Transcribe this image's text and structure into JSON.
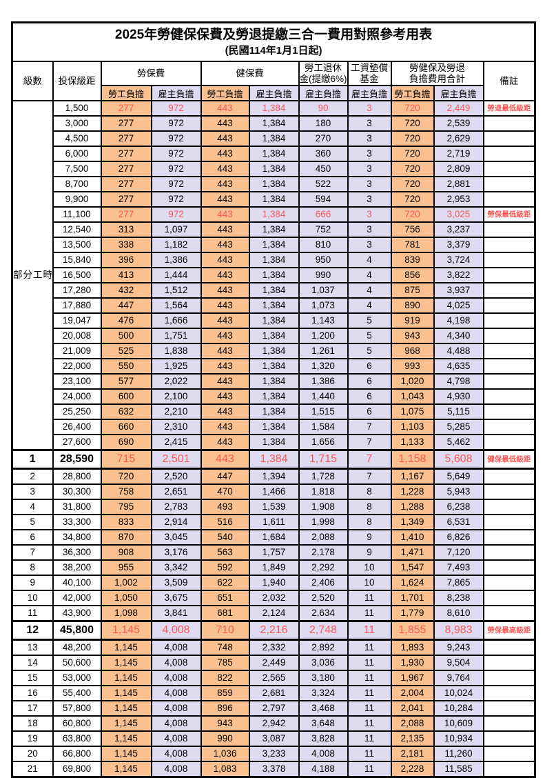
{
  "title": "2025年勞健保保費及勞退提繳三合一費用對照參考用表",
  "subtitle": "(民國114年1月1日起)",
  "colors": {
    "highlight_orange": "#FAC090",
    "highlight_lavender": "#DEDAEF",
    "alert_red": "#FB5A5A"
  },
  "header": {
    "level": "級數",
    "bracket": "投保級距",
    "labor": "勞保費",
    "health": "健保費",
    "pension_line1": "勞工退休",
    "pension_line2": "金(提繳6%)",
    "wage_line1": "工資墊償",
    "wage_line2": "基金",
    "total_line1": "勞健保及勞退",
    "total_line2": "負擔費用合計",
    "note": "備註",
    "employee": "勞工負擔",
    "employer": "雇主負擔"
  },
  "part_time_label": "部分工時",
  "part_time_row_span": 23,
  "rows": [
    {
      "level": "",
      "bracket": "1,500",
      "values": [
        "277",
        "972",
        "443",
        "1,384",
        "90",
        "3",
        "720",
        "2,449"
      ],
      "note": "勞退最低級距",
      "red": true,
      "bold": false
    },
    {
      "level": "",
      "bracket": "3,000",
      "values": [
        "277",
        "972",
        "443",
        "1,384",
        "180",
        "3",
        "720",
        "2,539"
      ],
      "note": "",
      "red": false,
      "bold": false
    },
    {
      "level": "",
      "bracket": "4,500",
      "values": [
        "277",
        "972",
        "443",
        "1,384",
        "270",
        "3",
        "720",
        "2,629"
      ],
      "note": "",
      "red": false,
      "bold": false
    },
    {
      "level": "",
      "bracket": "6,000",
      "values": [
        "277",
        "972",
        "443",
        "1,384",
        "360",
        "3",
        "720",
        "2,719"
      ],
      "note": "",
      "red": false,
      "bold": false
    },
    {
      "level": "",
      "bracket": "7,500",
      "values": [
        "277",
        "972",
        "443",
        "1,384",
        "450",
        "3",
        "720",
        "2,809"
      ],
      "note": "",
      "red": false,
      "bold": false
    },
    {
      "level": "",
      "bracket": "8,700",
      "values": [
        "277",
        "972",
        "443",
        "1,384",
        "522",
        "3",
        "720",
        "2,881"
      ],
      "note": "",
      "red": false,
      "bold": false
    },
    {
      "level": "",
      "bracket": "9,900",
      "values": [
        "277",
        "972",
        "443",
        "1,384",
        "594",
        "3",
        "720",
        "2,953"
      ],
      "note": "",
      "red": false,
      "bold": false
    },
    {
      "level": "",
      "bracket": "11,100",
      "values": [
        "277",
        "972",
        "443",
        "1,384",
        "666",
        "3",
        "720",
        "3,025"
      ],
      "note": "勞保最低級距",
      "red": true,
      "bold": false
    },
    {
      "level": "",
      "bracket": "12,540",
      "values": [
        "313",
        "1,097",
        "443",
        "1,384",
        "752",
        "3",
        "756",
        "3,237"
      ],
      "note": "",
      "red": false,
      "bold": false
    },
    {
      "level": "",
      "bracket": "13,500",
      "values": [
        "338",
        "1,182",
        "443",
        "1,384",
        "810",
        "3",
        "781",
        "3,379"
      ],
      "note": "",
      "red": false,
      "bold": false
    },
    {
      "level": "",
      "bracket": "15,840",
      "values": [
        "396",
        "1,386",
        "443",
        "1,384",
        "950",
        "4",
        "839",
        "3,724"
      ],
      "note": "",
      "red": false,
      "bold": false
    },
    {
      "level": "",
      "bracket": "16,500",
      "values": [
        "413",
        "1,444",
        "443",
        "1,384",
        "990",
        "4",
        "856",
        "3,822"
      ],
      "note": "",
      "red": false,
      "bold": false
    },
    {
      "level": "",
      "bracket": "17,280",
      "values": [
        "432",
        "1,512",
        "443",
        "1,384",
        "1,037",
        "4",
        "875",
        "3,937"
      ],
      "note": "",
      "red": false,
      "bold": false
    },
    {
      "level": "",
      "bracket": "17,880",
      "values": [
        "447",
        "1,564",
        "443",
        "1,384",
        "1,073",
        "4",
        "890",
        "4,025"
      ],
      "note": "",
      "red": false,
      "bold": false
    },
    {
      "level": "",
      "bracket": "19,047",
      "values": [
        "476",
        "1,666",
        "443",
        "1,384",
        "1,143",
        "5",
        "919",
        "4,198"
      ],
      "note": "",
      "red": false,
      "bold": false
    },
    {
      "level": "",
      "bracket": "20,008",
      "values": [
        "500",
        "1,751",
        "443",
        "1,384",
        "1,200",
        "5",
        "943",
        "4,340"
      ],
      "note": "",
      "red": false,
      "bold": false
    },
    {
      "level": "",
      "bracket": "21,009",
      "values": [
        "525",
        "1,838",
        "443",
        "1,384",
        "1,261",
        "5",
        "968",
        "4,488"
      ],
      "note": "",
      "red": false,
      "bold": false
    },
    {
      "level": "",
      "bracket": "22,000",
      "values": [
        "550",
        "1,925",
        "443",
        "1,384",
        "1,320",
        "6",
        "993",
        "4,635"
      ],
      "note": "",
      "red": false,
      "bold": false
    },
    {
      "level": "",
      "bracket": "23,100",
      "values": [
        "577",
        "2,022",
        "443",
        "1,384",
        "1,386",
        "6",
        "1,020",
        "4,798"
      ],
      "note": "",
      "red": false,
      "bold": false
    },
    {
      "level": "",
      "bracket": "24,000",
      "values": [
        "600",
        "2,100",
        "443",
        "1,384",
        "1,440",
        "6",
        "1,043",
        "4,930"
      ],
      "note": "",
      "red": false,
      "bold": false
    },
    {
      "level": "",
      "bracket": "25,250",
      "values": [
        "632",
        "2,210",
        "443",
        "1,384",
        "1,515",
        "6",
        "1,075",
        "5,115"
      ],
      "note": "",
      "red": false,
      "bold": false
    },
    {
      "level": "",
      "bracket": "26,400",
      "values": [
        "660",
        "2,310",
        "443",
        "1,384",
        "1,584",
        "7",
        "1,103",
        "5,285"
      ],
      "note": "",
      "red": false,
      "bold": false
    },
    {
      "level": "",
      "bracket": "27,600",
      "values": [
        "690",
        "2,415",
        "443",
        "1,384",
        "1,656",
        "7",
        "1,133",
        "5,462"
      ],
      "note": "",
      "red": false,
      "bold": false
    },
    {
      "level": "1",
      "bracket": "28,590",
      "values": [
        "715",
        "2,501",
        "443",
        "1,384",
        "1,715",
        "7",
        "1,158",
        "5,608"
      ],
      "note": "健保最低級距",
      "red": true,
      "bold": true
    },
    {
      "level": "2",
      "bracket": "28,800",
      "values": [
        "720",
        "2,520",
        "447",
        "1,394",
        "1,728",
        "7",
        "1,167",
        "5,649"
      ],
      "note": "",
      "red": false,
      "bold": false
    },
    {
      "level": "3",
      "bracket": "30,300",
      "values": [
        "758",
        "2,651",
        "470",
        "1,466",
        "1,818",
        "8",
        "1,228",
        "5,943"
      ],
      "note": "",
      "red": false,
      "bold": false
    },
    {
      "level": "4",
      "bracket": "31,800",
      "values": [
        "795",
        "2,783",
        "493",
        "1,539",
        "1,908",
        "8",
        "1,288",
        "6,238"
      ],
      "note": "",
      "red": false,
      "bold": false
    },
    {
      "level": "5",
      "bracket": "33,300",
      "values": [
        "833",
        "2,914",
        "516",
        "1,611",
        "1,998",
        "8",
        "1,349",
        "6,531"
      ],
      "note": "",
      "red": false,
      "bold": false
    },
    {
      "level": "6",
      "bracket": "34,800",
      "values": [
        "870",
        "3,045",
        "540",
        "1,684",
        "2,088",
        "9",
        "1,410",
        "6,826"
      ],
      "note": "",
      "red": false,
      "bold": false
    },
    {
      "level": "7",
      "bracket": "36,300",
      "values": [
        "908",
        "3,176",
        "563",
        "1,757",
        "2,178",
        "9",
        "1,471",
        "7,120"
      ],
      "note": "",
      "red": false,
      "bold": false
    },
    {
      "level": "8",
      "bracket": "38,200",
      "values": [
        "955",
        "3,342",
        "592",
        "1,849",
        "2,292",
        "10",
        "1,547",
        "7,493"
      ],
      "note": "",
      "red": false,
      "bold": false
    },
    {
      "level": "9",
      "bracket": "40,100",
      "values": [
        "1,002",
        "3,509",
        "622",
        "1,940",
        "2,406",
        "10",
        "1,624",
        "7,865"
      ],
      "note": "",
      "red": false,
      "bold": false
    },
    {
      "level": "10",
      "bracket": "42,000",
      "values": [
        "1,050",
        "3,675",
        "651",
        "2,032",
        "2,520",
        "11",
        "1,701",
        "8,238"
      ],
      "note": "",
      "red": false,
      "bold": false
    },
    {
      "level": "11",
      "bracket": "43,900",
      "values": [
        "1,098",
        "3,841",
        "681",
        "2,124",
        "2,634",
        "11",
        "1,779",
        "8,610"
      ],
      "note": "",
      "red": false,
      "bold": false
    },
    {
      "level": "12",
      "bracket": "45,800",
      "values": [
        "1,145",
        "4,008",
        "710",
        "2,216",
        "2,748",
        "11",
        "1,855",
        "8,983"
      ],
      "note": "勞保最高級距",
      "red": true,
      "bold": true
    },
    {
      "level": "13",
      "bracket": "48,200",
      "values": [
        "1,145",
        "4,008",
        "748",
        "2,332",
        "2,892",
        "11",
        "1,893",
        "9,243"
      ],
      "note": "",
      "red": false,
      "bold": false
    },
    {
      "level": "14",
      "bracket": "50,600",
      "values": [
        "1,145",
        "4,008",
        "785",
        "2,449",
        "3,036",
        "11",
        "1,930",
        "9,504"
      ],
      "note": "",
      "red": false,
      "bold": false
    },
    {
      "level": "15",
      "bracket": "53,000",
      "values": [
        "1,145",
        "4,008",
        "822",
        "2,565",
        "3,180",
        "11",
        "1,967",
        "9,764"
      ],
      "note": "",
      "red": false,
      "bold": false
    },
    {
      "level": "16",
      "bracket": "55,400",
      "values": [
        "1,145",
        "4,008",
        "859",
        "2,681",
        "3,324",
        "11",
        "2,004",
        "10,024"
      ],
      "note": "",
      "red": false,
      "bold": false
    },
    {
      "level": "17",
      "bracket": "57,800",
      "values": [
        "1,145",
        "4,008",
        "896",
        "2,797",
        "3,468",
        "11",
        "2,041",
        "10,284"
      ],
      "note": "",
      "red": false,
      "bold": false
    },
    {
      "level": "18",
      "bracket": "60,800",
      "values": [
        "1,145",
        "4,008",
        "943",
        "2,942",
        "3,648",
        "11",
        "2,088",
        "10,609"
      ],
      "note": "",
      "red": false,
      "bold": false
    },
    {
      "level": "19",
      "bracket": "63,800",
      "values": [
        "1,145",
        "4,008",
        "990",
        "3,087",
        "3,828",
        "11",
        "2,135",
        "10,934"
      ],
      "note": "",
      "red": false,
      "bold": false
    },
    {
      "level": "20",
      "bracket": "66,800",
      "values": [
        "1,145",
        "4,008",
        "1,036",
        "3,233",
        "4,008",
        "11",
        "2,181",
        "11,260"
      ],
      "note": "",
      "red": false,
      "bold": false
    },
    {
      "level": "21",
      "bracket": "69,800",
      "values": [
        "1,145",
        "4,008",
        "1,083",
        "3,378",
        "4,188",
        "11",
        "2,228",
        "11,585"
      ],
      "note": "",
      "red": false,
      "bold": false
    }
  ]
}
